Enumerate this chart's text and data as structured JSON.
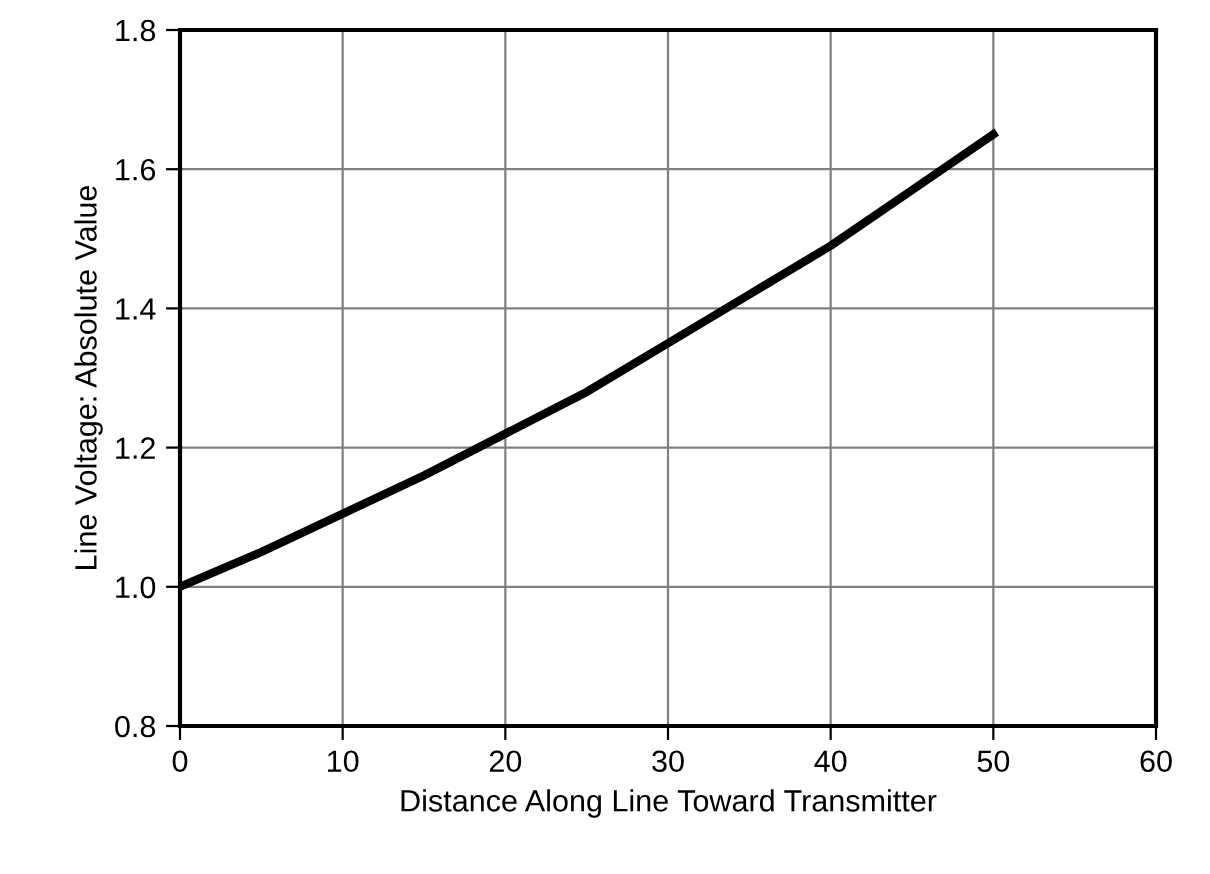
{
  "chart_data": {
    "type": "line",
    "xlabel": "Distance Along Line Toward Transmitter",
    "ylabel": "Line Voltage: Absolute Value",
    "x": [
      0,
      5,
      10,
      15,
      20,
      25,
      30,
      35,
      40,
      45,
      50
    ],
    "series": [
      {
        "color": "#000000",
        "values": [
          1.0,
          1.05,
          1.105,
          1.16,
          1.22,
          1.28,
          1.35,
          1.42,
          1.49,
          1.57,
          1.65
        ]
      }
    ],
    "xlim": [
      0,
      60
    ],
    "xticks": [
      0,
      10,
      20,
      30,
      40,
      50,
      60
    ],
    "ylim": [
      0.8,
      1.8
    ],
    "yticks": [
      {
        "value": 0.8,
        "label": "0.8"
      },
      {
        "value": 1.0,
        "label": "1.0"
      },
      {
        "value": 1.2,
        "label": "1.2"
      },
      {
        "value": 1.4,
        "label": "1.4"
      },
      {
        "value": 1.6,
        "label": "1.6"
      },
      {
        "value": 1.8,
        "label": "1.8"
      }
    ],
    "grid": true,
    "marker": "none",
    "line_style": "solid"
  }
}
